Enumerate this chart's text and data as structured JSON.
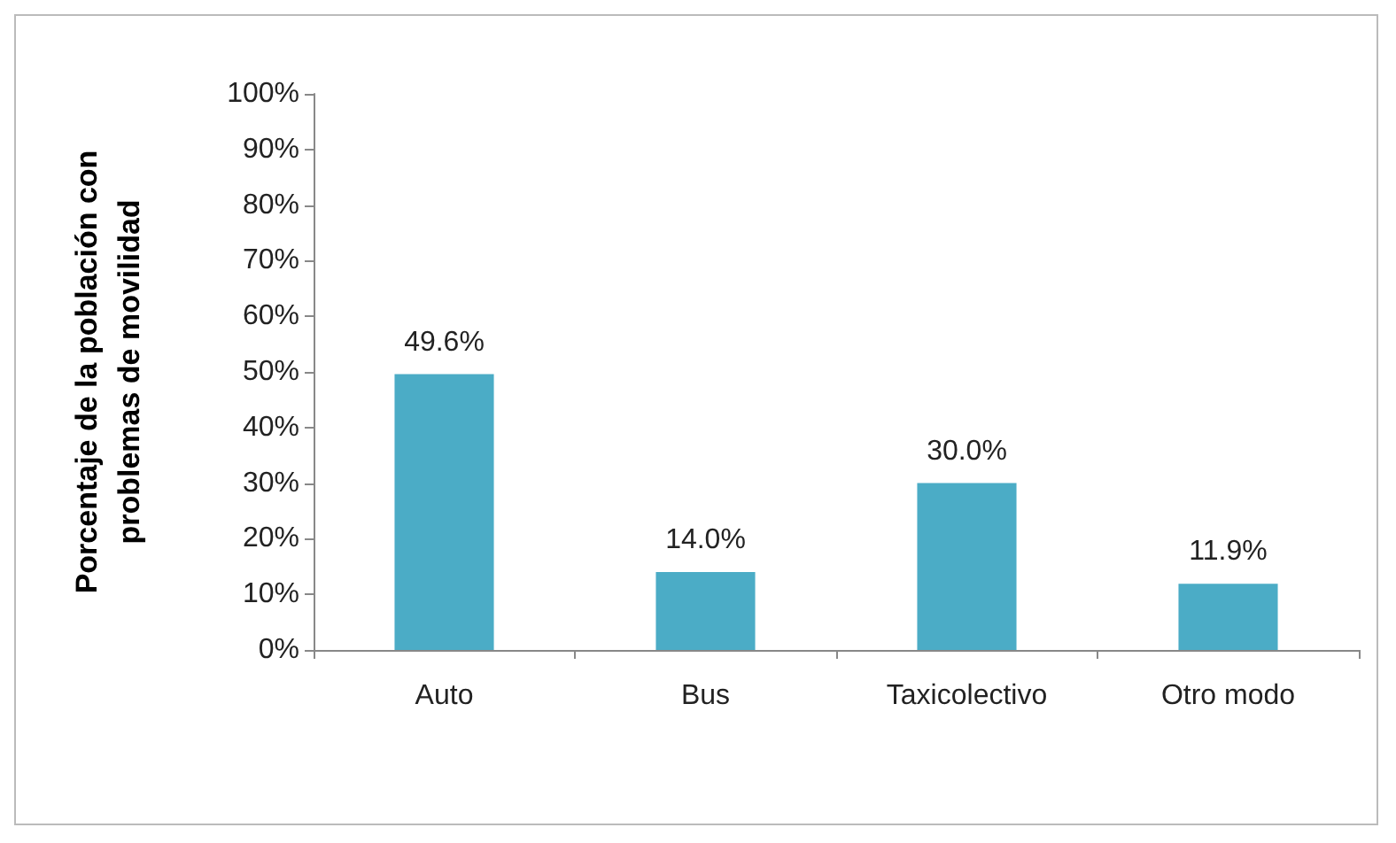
{
  "chart_data": {
    "type": "bar",
    "ylabel": "Porcentaje de la población con\nproblemas de movilidad",
    "categories": [
      "Auto",
      "Bus",
      "Taxicolectivo",
      "Otro modo"
    ],
    "values": [
      49.6,
      14.0,
      30.0,
      11.9
    ],
    "value_labels": [
      "49.6%",
      "14.0%",
      "30.0%",
      "11.9%"
    ],
    "color": "#4bacc6",
    "ylim": [
      0,
      100
    ],
    "yticks": [
      {
        "value": 0,
        "label": "0%"
      },
      {
        "value": 10,
        "label": "10%"
      },
      {
        "value": 20,
        "label": "20%"
      },
      {
        "value": 30,
        "label": "30%"
      },
      {
        "value": 40,
        "label": "40%"
      },
      {
        "value": 50,
        "label": "50%"
      },
      {
        "value": 60,
        "label": "60%"
      },
      {
        "value": 70,
        "label": "70%"
      },
      {
        "value": 80,
        "label": "80%"
      },
      {
        "value": 90,
        "label": "90%"
      },
      {
        "value": 100,
        "label": "100%"
      }
    ],
    "grid": false
  }
}
